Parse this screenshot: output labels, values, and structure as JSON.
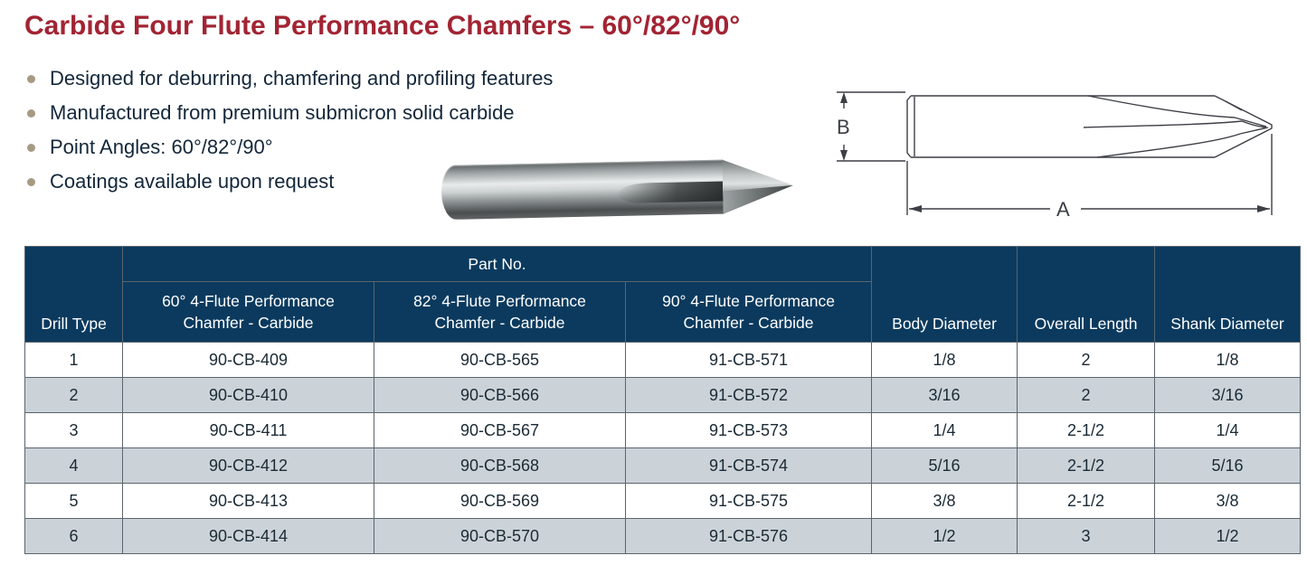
{
  "page": {
    "title": "Carbide Four Flute Performance Chamfers – 60°/82°/90°",
    "title_color": "#a22433",
    "bullets": [
      "Designed for deburring, chamfering and profiling features",
      "Manufactured from premium submicron solid carbide",
      "Point Angles: 60°/82°/90°",
      "Coatings available upon request"
    ],
    "bullet_dot_color": "#a79a85",
    "text_color": "#13273a"
  },
  "diagram": {
    "label_b": "B",
    "label_a": "A"
  },
  "table": {
    "colors": {
      "header_bg": "#0b3a5e",
      "header_text": "#ffffff",
      "alt_row_bg": "#ccd3d8",
      "border": "#5a656e",
      "cell_text": "#1a2a35"
    },
    "headers": {
      "drill_type": "Drill Type",
      "part_no_group": "Part No.",
      "sub": [
        "60° 4-Flute Performance\nChamfer - Carbide",
        "82° 4-Flute Performance\nChamfer - Carbide",
        "90° 4-Flute Performance\nChamfer - Carbide"
      ],
      "body_diameter": "Body Diameter",
      "overall_length": "Overall Length",
      "shank_diameter": "Shank Diameter"
    },
    "rows": [
      [
        "1",
        "90-CB-409",
        "90-CB-565",
        "91-CB-571",
        "1/8",
        "2",
        "1/8"
      ],
      [
        "2",
        "90-CB-410",
        "90-CB-566",
        "91-CB-572",
        "3/16",
        "2",
        "3/16"
      ],
      [
        "3",
        "90-CB-411",
        "90-CB-567",
        "91-CB-573",
        "1/4",
        "2-1/2",
        "1/4"
      ],
      [
        "4",
        "90-CB-412",
        "90-CB-568",
        "91-CB-574",
        "5/16",
        "2-1/2",
        "5/16"
      ],
      [
        "5",
        "90-CB-413",
        "90-CB-569",
        "91-CB-575",
        "3/8",
        "2-1/2",
        "3/8"
      ],
      [
        "6",
        "90-CB-414",
        "90-CB-570",
        "91-CB-576",
        "1/2",
        "3",
        "1/2"
      ]
    ]
  }
}
